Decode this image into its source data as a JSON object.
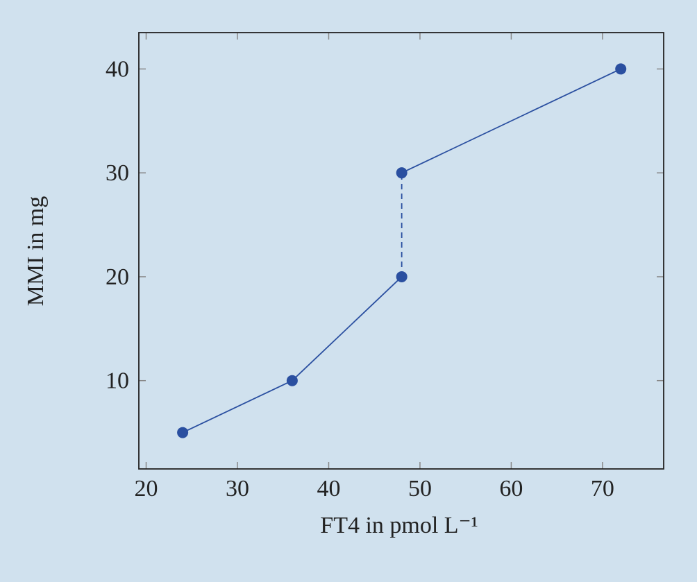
{
  "chart_data": {
    "type": "line",
    "x_label": "FT4 in pmol L⁻¹",
    "y_label": "MMI in mg",
    "xlim": [
      19.2,
      76.7
    ],
    "ylim": [
      1.5,
      43.5
    ],
    "xticks": [
      20,
      30,
      40,
      50,
      60,
      70
    ],
    "yticks": [
      10,
      20,
      30,
      40
    ],
    "series": [
      {
        "color": "#2a4fa0",
        "x": [
          24,
          36,
          48,
          48,
          72
        ],
        "values": [
          5,
          10,
          20,
          30,
          40
        ],
        "segment_styles": [
          "solid",
          "solid",
          "dashed",
          "solid"
        ]
      }
    ]
  }
}
